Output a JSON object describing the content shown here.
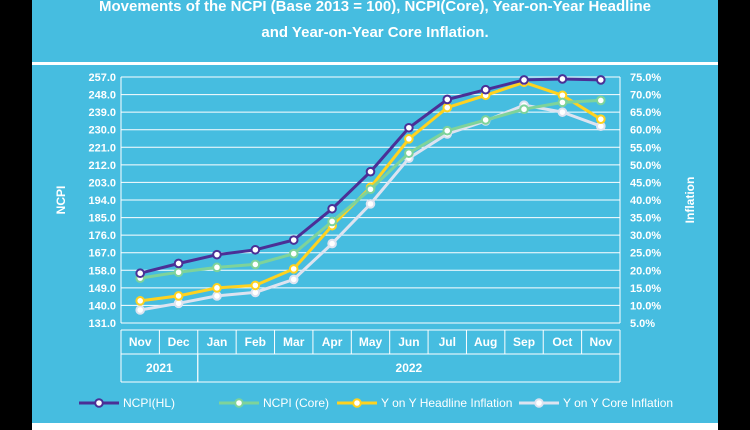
{
  "title_lines": [
    "Movements of the NCPI (Base 2013 = 100), NCPI(Core), Year-on-Year Headline",
    "and Year-on-Year Core Inflation."
  ],
  "colors": {
    "panel_bg": "#46bde0",
    "grid": "#ffffff",
    "ncpi_hl": "#4b2f96",
    "ncpi_core": "#7ed39a",
    "yoy_headline": "#ffd21f",
    "yoy_core": "#dde3f0"
  },
  "chart_data": {
    "type": "line",
    "title": "Movements of the NCPI (Base 2013 = 100), NCPI(Core), Year-on-Year Headline and Year-on-Year Core Inflation.",
    "categories": [
      "Nov",
      "Dec",
      "Jan",
      "Feb",
      "Mar",
      "Apr",
      "May",
      "Jun",
      "Jul",
      "Aug",
      "Sep",
      "Oct",
      "Nov"
    ],
    "year_groups": [
      {
        "label": "2021",
        "count": 2
      },
      {
        "label": "2022",
        "count": 11
      }
    ],
    "ylabel_left": "NCPI",
    "ylabel_right": "Inflation",
    "left_ticks": [
      "257.0",
      "248.0",
      "239.0",
      "230.0",
      "221.0",
      "212.0",
      "203.0",
      "194.0",
      "185.0",
      "176.0",
      "167.0",
      "158.0",
      "149.0",
      "140.0",
      "131.0"
    ],
    "right_ticks": [
      "75.0%",
      "70.0%",
      "65.0%",
      "60.0%",
      "55.0%",
      "50.0%",
      "45.0%",
      "40.0%",
      "35.0%",
      "30.0%",
      "25.0%",
      "20.0%",
      "15.0%",
      "10.0%",
      "5.0%"
    ],
    "ylim_left": [
      131,
      257
    ],
    "ylim_right": [
      5,
      75
    ],
    "series": [
      {
        "name": "NCPI(HL)",
        "axis": "left",
        "values": [
          156.5,
          161.5,
          166.0,
          168.5,
          173.5,
          189.5,
          208.5,
          231.0,
          245.5,
          250.5,
          255.5,
          256.0,
          255.5
        ]
      },
      {
        "name": "NCPI (Core)",
        "axis": "left",
        "values": [
          154.0,
          157.0,
          159.5,
          161.0,
          166.5,
          183.0,
          199.5,
          218.0,
          229.5,
          235.0,
          240.5,
          244.0,
          245.0
        ]
      },
      {
        "name": "Y on Y Headline Inflation",
        "axis": "right",
        "values": [
          11.3,
          12.7,
          15.0,
          15.7,
          20.4,
          32.7,
          43.6,
          57.4,
          66.3,
          69.8,
          73.5,
          69.8,
          63.0
        ]
      },
      {
        "name": "Y on Y Core Inflation",
        "axis": "right",
        "values": [
          8.7,
          10.6,
          12.7,
          13.7,
          17.4,
          27.6,
          38.9,
          51.9,
          58.8,
          62.5,
          67.0,
          65.0,
          61.0
        ]
      }
    ],
    "legend_position": "bottom"
  }
}
